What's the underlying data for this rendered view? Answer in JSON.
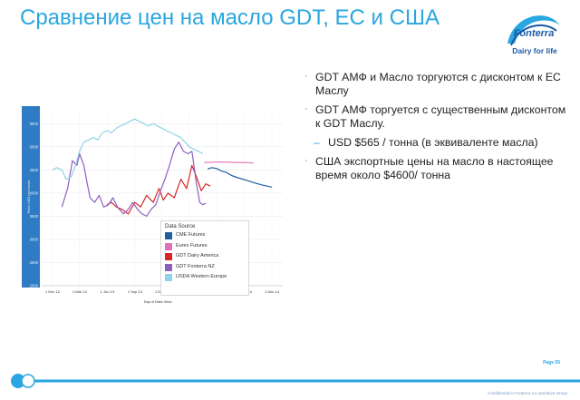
{
  "slide": {
    "title": "Сравнение цен на масло GDT, ЕС и США",
    "logo": {
      "brand": "Fonterra",
      "tagline": "Dairy for life",
      "color": "#1b5aa6"
    },
    "bullets": [
      {
        "text": "GDT АМФ  и Масло торгуются  с дисконтом к ЕС Маслу",
        "level": 1
      },
      {
        "text": "GDT АМФ торгуется с существенным дисконтом к GDT Маслу.",
        "level": 1
      },
      {
        "text": "USD $565 / тонна (в эквиваленте масла)",
        "level": 2
      },
      {
        "text": "США экспортные цены на масло в настоящее время около $4600/ тонна",
        "level": 1
      }
    ],
    "page_number": "Page 55",
    "confidential": "Confidential to Fonterra Co-operative Group"
  },
  "chart_data": {
    "type": "line",
    "xlabel": "Day of Date View",
    "ylabel": "Price USD per tonne",
    "x_ticks": [
      "1 Dec 12",
      "1 Mar 13",
      "1 Jun 13",
      "1 Sep 13",
      "1 Dec 13",
      "1 Mar 14",
      "1 Jun 14",
      "1 Sep 14",
      "1 Dec 14"
    ],
    "y_ticks": [
      2000,
      2500,
      3000,
      3500,
      4000,
      4500,
      5000,
      5500
    ],
    "ylim": [
      2000,
      5800
    ],
    "legend_title": "Data Source",
    "series": [
      {
        "name": "CME Futures",
        "color": "#1f5f9e",
        "x": [
          "2014-05-01",
          "2014-05-15",
          "2014-06-01",
          "2014-06-15",
          "2014-07-01",
          "2014-07-20",
          "2014-08-10",
          "2014-09-01",
          "2014-09-20",
          "2014-10-10",
          "2014-11-01",
          "2014-12-01"
        ],
        "values": [
          4520,
          4550,
          4530,
          4480,
          4450,
          4380,
          4330,
          4290,
          4250,
          4210,
          4170,
          4130
        ]
      },
      {
        "name": "Eurex Futures",
        "color": "#e36fb6",
        "x": [
          "2014-04-20",
          "2014-06-01",
          "2014-07-01",
          "2014-08-01",
          "2014-09-01",
          "2014-10-01"
        ],
        "values": [
          4660,
          4670,
          4670,
          4660,
          4660,
          4650
        ]
      },
      {
        "name": "GDT Dairy America",
        "color": "#d62728",
        "x": [
          "2013-06-01",
          "2013-06-15",
          "2013-07-01",
          "2013-07-20",
          "2013-08-10",
          "2013-09-01",
          "2013-09-20",
          "2013-10-10",
          "2013-11-01",
          "2013-11-20",
          "2013-12-05",
          "2013-12-20",
          "2014-01-10",
          "2014-02-01",
          "2014-02-20",
          "2014-03-10",
          "2014-03-25",
          "2014-04-10",
          "2014-04-25",
          "2014-05-10"
        ],
        "values": [
          3750,
          3800,
          3700,
          3650,
          3550,
          3800,
          3700,
          3950,
          3800,
          4100,
          3850,
          4000,
          3900,
          4300,
          4100,
          4600,
          4350,
          4050,
          4200,
          4150
        ]
      },
      {
        "name": "GDT Fonterra NZ",
        "color": "#8c5fc0",
        "x": [
          "2013-01-01",
          "2013-01-20",
          "2013-02-05",
          "2013-02-20",
          "2013-03-01",
          "2013-03-15",
          "2013-03-25",
          "2013-04-05",
          "2013-04-20",
          "2013-05-05",
          "2013-05-20",
          "2013-06-05",
          "2013-06-20",
          "2013-07-05",
          "2013-07-25",
          "2013-08-10",
          "2013-08-25",
          "2013-09-10",
          "2013-09-25",
          "2013-10-10",
          "2013-10-25",
          "2013-11-10",
          "2013-11-25",
          "2013-12-10",
          "2013-12-25",
          "2014-01-10",
          "2014-01-25",
          "2014-02-10",
          "2014-02-25",
          "2014-03-10",
          "2014-03-25",
          "2014-04-05",
          "2014-04-15",
          "2014-04-25"
        ],
        "values": [
          3700,
          4100,
          4700,
          4600,
          4850,
          4600,
          4250,
          3900,
          3800,
          3950,
          3700,
          3750,
          3900,
          3700,
          3550,
          3650,
          3800,
          3650,
          3550,
          3500,
          3650,
          3750,
          4050,
          4300,
          4600,
          4950,
          5100,
          4900,
          4850,
          4900,
          4200,
          3800,
          3750,
          3780
        ]
      },
      {
        "name": "USDA Western Europe",
        "color": "#8fd3e6",
        "x": [
          "2012-12-01",
          "2012-12-15",
          "2013-01-01",
          "2013-01-15",
          "2013-02-01",
          "2013-02-15",
          "2013-03-01",
          "2013-03-15",
          "2013-04-01",
          "2013-04-15",
          "2013-05-01",
          "2013-05-15",
          "2013-06-01",
          "2013-06-15",
          "2013-07-01",
          "2013-07-15",
          "2013-08-01",
          "2013-08-15",
          "2013-09-01",
          "2013-09-15",
          "2013-10-01",
          "2013-10-15",
          "2013-11-01",
          "2013-11-15",
          "2013-12-01",
          "2013-12-15",
          "2014-01-01",
          "2014-01-15",
          "2014-02-01",
          "2014-02-15",
          "2014-03-01",
          "2014-03-15",
          "2014-04-01",
          "2014-04-15"
        ],
        "values": [
          4500,
          4550,
          4500,
          4300,
          4350,
          4600,
          4900,
          5100,
          5150,
          5200,
          5150,
          5300,
          5350,
          5300,
          5400,
          5450,
          5500,
          5550,
          5600,
          5550,
          5500,
          5450,
          5500,
          5450,
          5400,
          5350,
          5300,
          5250,
          5200,
          5100,
          5000,
          4950,
          4900,
          4850
        ]
      }
    ]
  }
}
